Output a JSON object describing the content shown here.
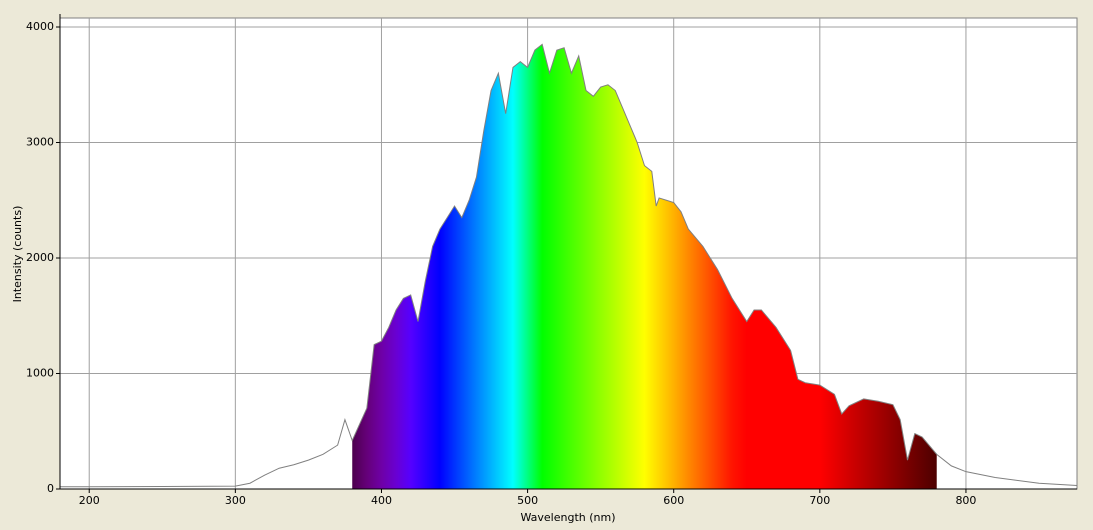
{
  "chart_data": {
    "type": "area",
    "xlabel": "Wavelength (nm)",
    "ylabel": "Intensity (counts)",
    "x": [
      180,
      200,
      250,
      300,
      310,
      320,
      330,
      340,
      350,
      360,
      370,
      375,
      380,
      385,
      390,
      395,
      400,
      405,
      410,
      415,
      420,
      425,
      430,
      435,
      440,
      445,
      450,
      455,
      460,
      465,
      470,
      475,
      480,
      485,
      490,
      495,
      500,
      505,
      510,
      515,
      520,
      525,
      530,
      535,
      540,
      545,
      550,
      555,
      560,
      565,
      570,
      575,
      580,
      585,
      588,
      590,
      595,
      600,
      605,
      610,
      620,
      630,
      640,
      650,
      655,
      660,
      670,
      680,
      685,
      690,
      700,
      710,
      715,
      720,
      730,
      740,
      750,
      755,
      760,
      765,
      770,
      780,
      790,
      800,
      820,
      850,
      876
    ],
    "values": [
      20,
      20,
      22,
      25,
      50,
      120,
      180,
      210,
      250,
      300,
      380,
      600,
      420,
      560,
      700,
      1250,
      1280,
      1400,
      1550,
      1650,
      1680,
      1450,
      1800,
      2100,
      2250,
      2350,
      2450,
      2350,
      2500,
      2700,
      3100,
      3450,
      3600,
      3250,
      3650,
      3700,
      3650,
      3800,
      3850,
      3600,
      3800,
      3820,
      3600,
      3750,
      3450,
      3400,
      3480,
      3500,
      3450,
      3300,
      3150,
      3000,
      2800,
      2750,
      2450,
      2520,
      2500,
      2480,
      2400,
      2250,
      2100,
      1900,
      1650,
      1450,
      1550,
      1550,
      1400,
      1200,
      950,
      920,
      900,
      820,
      650,
      720,
      780,
      760,
      730,
      600,
      250,
      480,
      450,
      300,
      200,
      150,
      100,
      50,
      30
    ],
    "line_color": "#808080",
    "fill_xrange": [
      380,
      780
    ],
    "xlim": [
      180,
      876
    ],
    "ylim": [
      0,
      4078
    ],
    "xticks": [
      200,
      300,
      400,
      500,
      600,
      700,
      800
    ],
    "yticks": [
      0,
      1000,
      2000,
      3000,
      4000
    ],
    "grid": true
  }
}
